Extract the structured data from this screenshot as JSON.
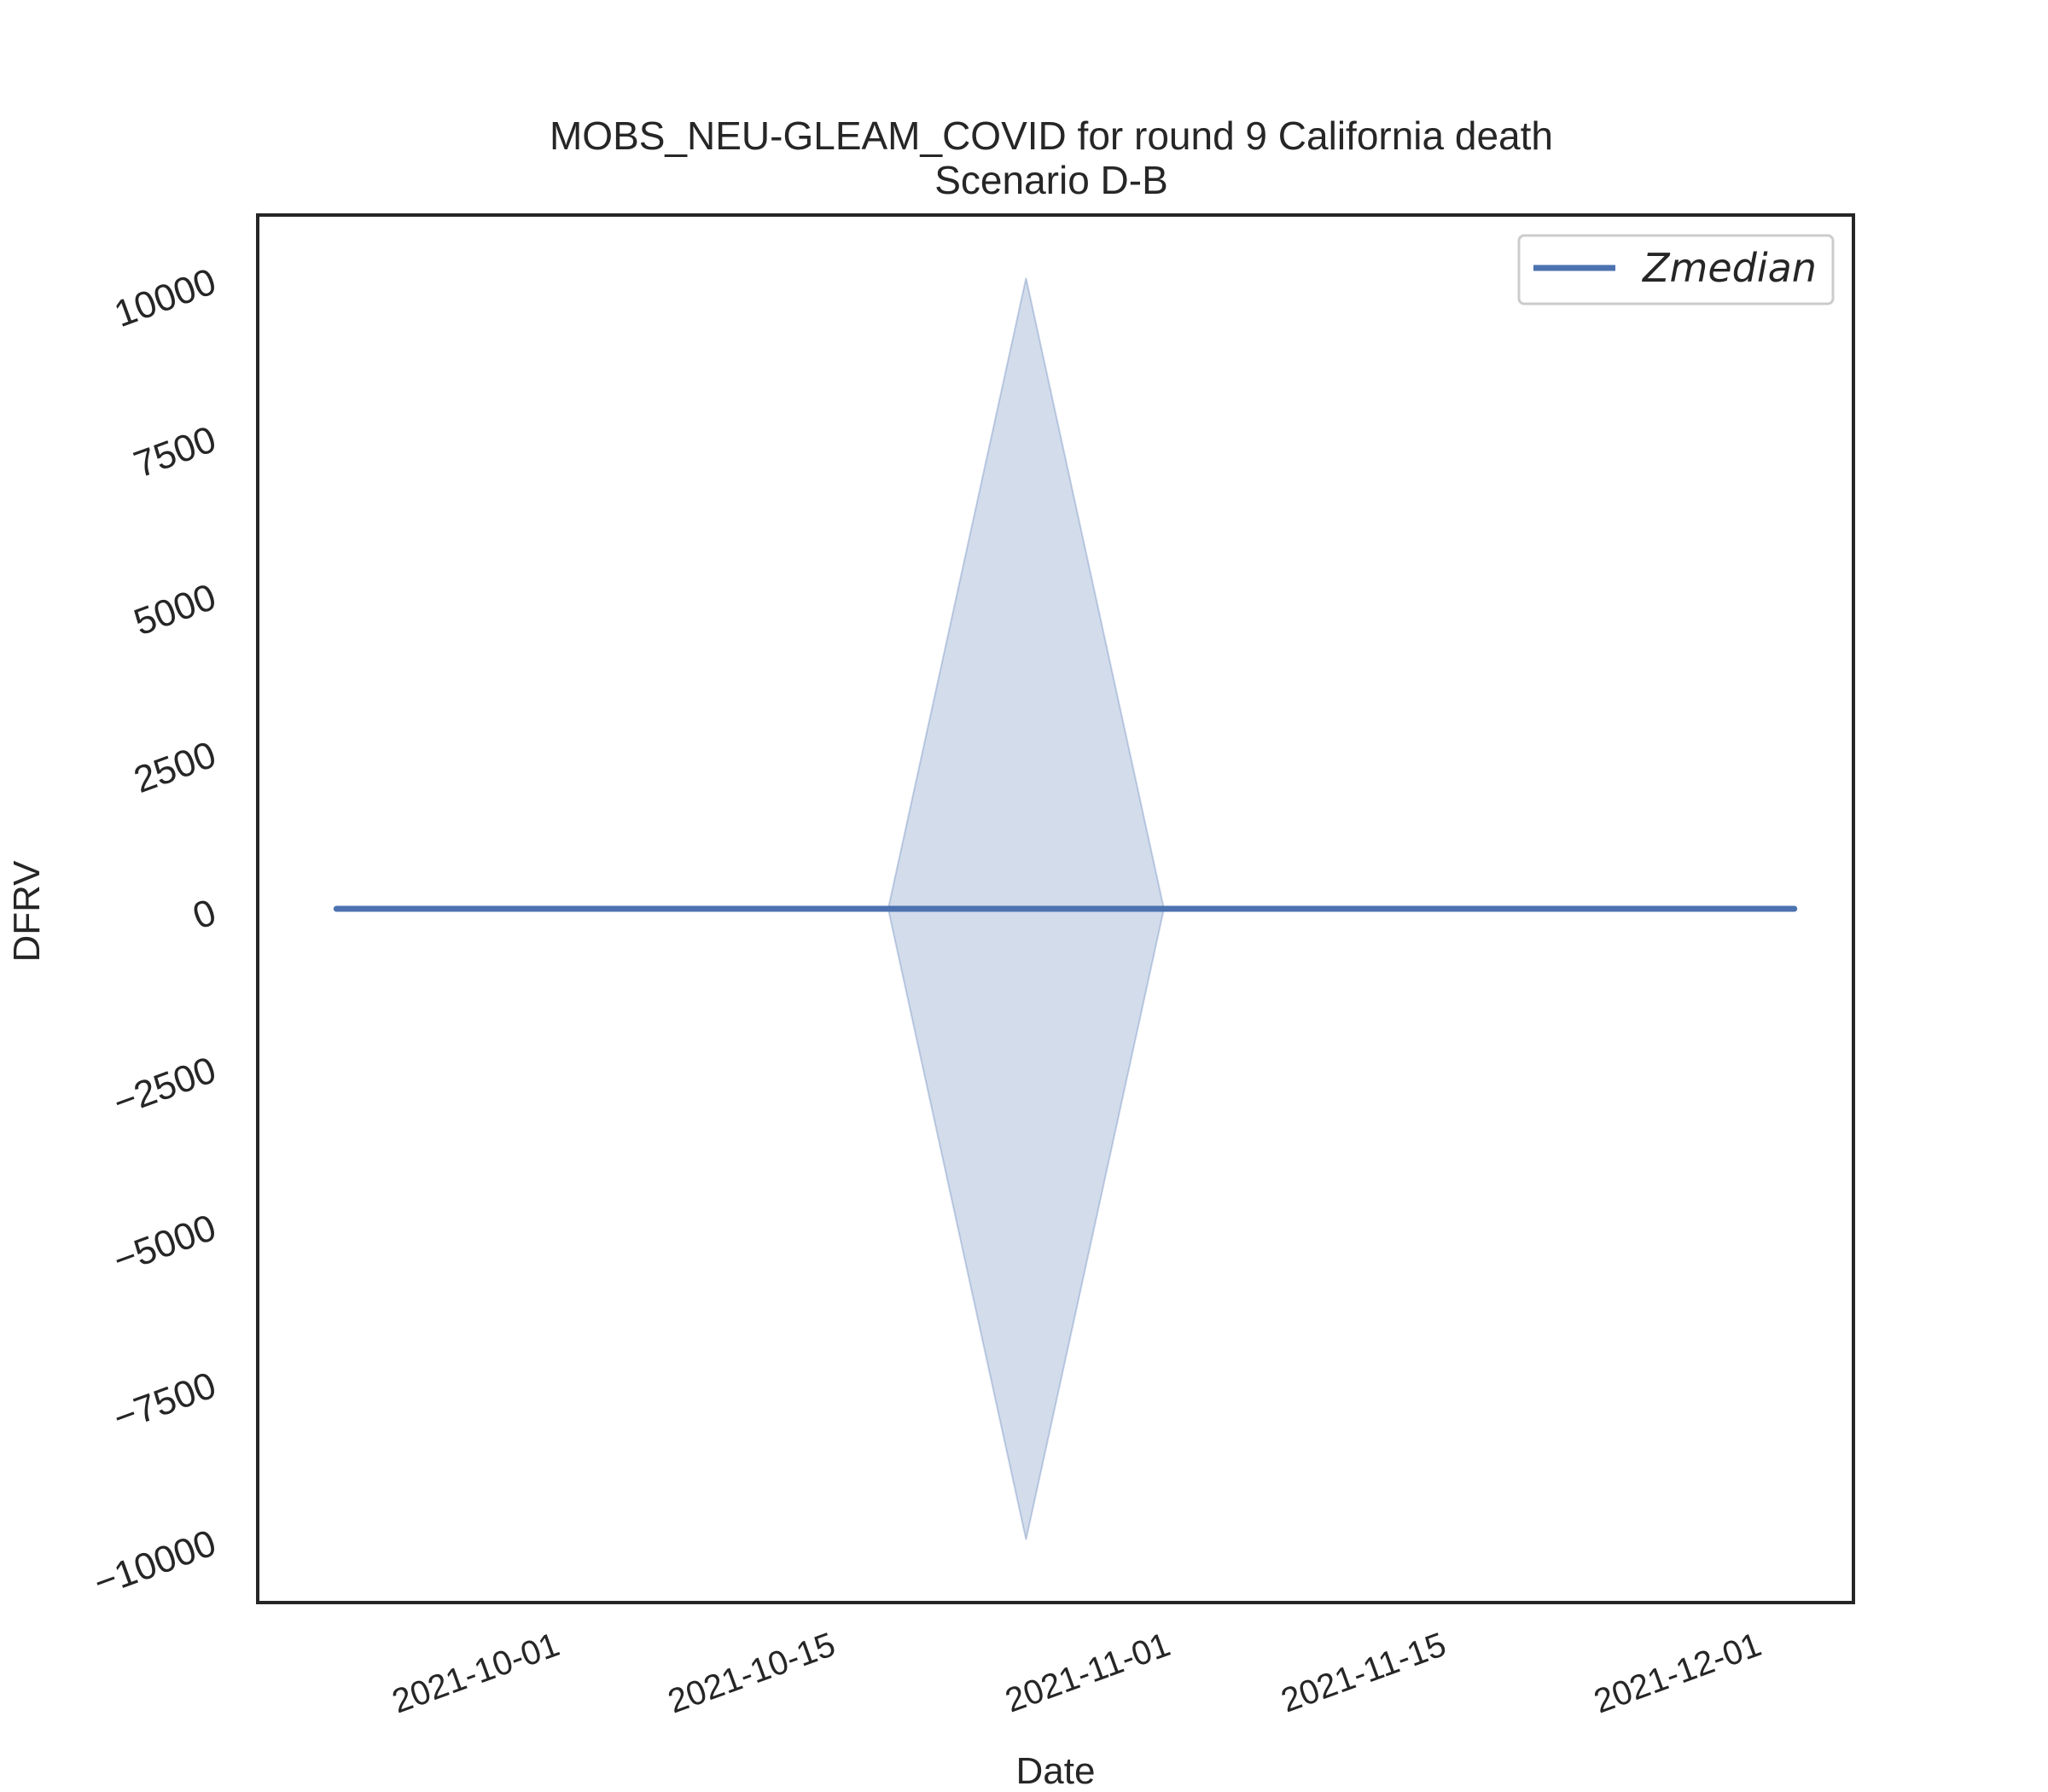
{
  "chart_data": {
    "type": "line",
    "title": "MOBS_NEU-GLEAM_COVID for round 9 California death",
    "subtitle": "Scenario D-B",
    "xlabel": "Date",
    "ylabel": "DFRV",
    "xlim": [
      "2021-09-17",
      "2021-12-07"
    ],
    "ylim": [
      -11000,
      11000
    ],
    "x_ticks": [
      "2021-10-01",
      "2021-10-15",
      "2021-11-01",
      "2021-11-15",
      "2021-12-01"
    ],
    "y_ticks": [
      10000,
      7500,
      5000,
      2500,
      0,
      -2500,
      -5000,
      -7500,
      -10000
    ],
    "y_tick_labels": [
      "10000",
      "7500",
      "5000",
      "2500",
      "0",
      "−2500",
      "−5000",
      "−7500",
      "−10000"
    ],
    "series": [
      {
        "name": "Zmedian",
        "color": "#4c72b0",
        "x": [
          "2021-09-21",
          "2021-10-19",
          "2021-10-26",
          "2021-11-02",
          "2021-12-04"
        ],
        "values": [
          0,
          0,
          0,
          0,
          0
        ]
      }
    ],
    "band": {
      "color": "#4c72b0",
      "opacity": 0.25,
      "x": [
        "2021-10-19",
        "2021-10-26",
        "2021-11-02"
      ],
      "lower": [
        0,
        -10000,
        0
      ],
      "upper": [
        0,
        10000,
        0
      ]
    },
    "legend": {
      "position": "top-right",
      "entries": [
        "Zmedian"
      ]
    },
    "grid": false
  }
}
